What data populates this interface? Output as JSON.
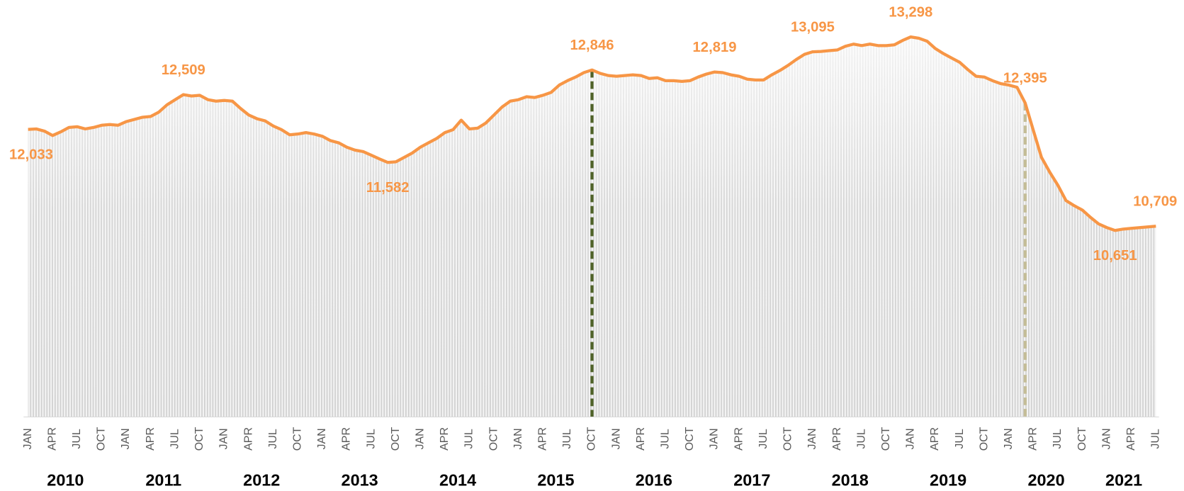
{
  "chart_data": {
    "type": "line",
    "categories": [
      "JAN",
      null,
      null,
      "APR",
      null,
      null,
      "JUL",
      null,
      null,
      "OCT",
      null,
      null,
      "JAN",
      null,
      null,
      "APR",
      null,
      null,
      "JUL",
      null,
      null,
      "OCT",
      null,
      null,
      "JAN",
      null,
      null,
      "APR",
      null,
      null,
      "JUL",
      null,
      null,
      "OCT",
      null,
      null,
      "JAN",
      null,
      null,
      "APR",
      null,
      null,
      "JUL",
      null,
      null,
      "OCT",
      null,
      null,
      "JAN",
      null,
      null,
      "APR",
      null,
      null,
      "JUL",
      null,
      null,
      "OCT",
      null,
      null,
      "JAN",
      null,
      null,
      "APR",
      null,
      null,
      "JUL",
      null,
      null,
      "OCT",
      null,
      null,
      "JAN",
      null,
      null,
      "APR",
      null,
      null,
      "JUL",
      null,
      null,
      "OCT",
      null,
      null,
      "JAN",
      null,
      null,
      "APR",
      null,
      null,
      "JUL",
      null,
      null,
      "OCT",
      null,
      null,
      "JAN",
      null,
      null,
      "APR",
      null,
      null,
      "JUL",
      null,
      null,
      "OCT",
      null,
      null,
      "JAN",
      null,
      null,
      "APR",
      null,
      null,
      "JUL",
      null,
      null,
      "OCT",
      null,
      null,
      "JAN",
      null,
      null,
      "APR",
      null,
      null,
      "JUL",
      null,
      null,
      "OCT",
      null,
      null,
      "JAN",
      null,
      null,
      "APR",
      null,
      null,
      "JUL"
    ],
    "years": [
      "2010",
      "2011",
      "2012",
      "2013",
      "2014",
      "2015",
      "2016",
      "2017",
      "2018",
      "2019",
      "2020",
      "2021"
    ],
    "color": "#f79646",
    "values": [
      12033,
      12040,
      12010,
      11950,
      12000,
      12060,
      12070,
      12040,
      12060,
      12090,
      12100,
      12090,
      12140,
      12170,
      12200,
      12210,
      12270,
      12370,
      12440,
      12509,
      12490,
      12500,
      12440,
      12420,
      12430,
      12420,
      12320,
      12230,
      12180,
      12150,
      12080,
      12030,
      11960,
      11970,
      11990,
      11970,
      11940,
      11880,
      11850,
      11790,
      11750,
      11730,
      11680,
      11630,
      11582,
      11590,
      11650,
      11710,
      11790,
      11850,
      11910,
      11990,
      12030,
      12160,
      12040,
      12050,
      12120,
      12230,
      12340,
      12420,
      12440,
      12480,
      12470,
      12500,
      12540,
      12640,
      12700,
      12750,
      12810,
      12846,
      12800,
      12770,
      12760,
      12770,
      12780,
      12770,
      12730,
      12740,
      12700,
      12700,
      12690,
      12700,
      12750,
      12790,
      12819,
      12810,
      12780,
      12760,
      12720,
      12710,
      12710,
      12780,
      12840,
      12910,
      12990,
      13060,
      13095,
      13100,
      13110,
      13120,
      13170,
      13200,
      13180,
      13200,
      13180,
      13180,
      13190,
      13250,
      13298,
      13280,
      13240,
      13140,
      13070,
      13010,
      12950,
      12850,
      12760,
      12750,
      12700,
      12660,
      12640,
      12610,
      12395,
      12020,
      11650,
      11450,
      11270,
      11060,
      10990,
      10930,
      10830,
      10740,
      10690,
      10651,
      10670,
      10680,
      10690,
      10700,
      10709
    ],
    "value_labels": [
      "12,033",
      null,
      null,
      null,
      null,
      null,
      null,
      null,
      null,
      null,
      null,
      null,
      null,
      null,
      null,
      null,
      null,
      null,
      null,
      "12,509",
      null,
      null,
      null,
      null,
      null,
      null,
      null,
      null,
      null,
      null,
      null,
      null,
      null,
      null,
      null,
      null,
      null,
      null,
      null,
      null,
      null,
      null,
      null,
      null,
      "11,582",
      null,
      null,
      null,
      null,
      null,
      null,
      null,
      null,
      null,
      null,
      null,
      null,
      null,
      null,
      null,
      null,
      null,
      null,
      null,
      null,
      null,
      null,
      null,
      null,
      "12,846",
      null,
      null,
      null,
      null,
      null,
      null,
      null,
      null,
      null,
      null,
      null,
      null,
      null,
      null,
      "12,819",
      null,
      null,
      null,
      null,
      null,
      null,
      null,
      null,
      null,
      null,
      null,
      "13,095",
      null,
      null,
      null,
      null,
      null,
      null,
      null,
      null,
      null,
      null,
      null,
      "13,298",
      null,
      null,
      null,
      null,
      null,
      null,
      null,
      null,
      null,
      null,
      null,
      null,
      null,
      "12,395",
      null,
      null,
      null,
      null,
      null,
      null,
      null,
      null,
      null,
      null,
      "10,651",
      null,
      null,
      null,
      null,
      "10,709"
    ],
    "drop_line_colors": [
      null,
      null,
      null,
      null,
      null,
      null,
      null,
      null,
      null,
      null,
      null,
      null,
      null,
      null,
      null,
      null,
      null,
      null,
      null,
      null,
      null,
      null,
      null,
      null,
      null,
      null,
      null,
      null,
      null,
      null,
      null,
      null,
      null,
      null,
      null,
      null,
      null,
      null,
      null,
      null,
      null,
      null,
      null,
      null,
      null,
      null,
      null,
      null,
      null,
      null,
      null,
      null,
      null,
      null,
      null,
      null,
      null,
      null,
      null,
      null,
      null,
      null,
      null,
      null,
      null,
      null,
      null,
      null,
      null,
      "#4f6228",
      null,
      null,
      null,
      null,
      null,
      null,
      null,
      null,
      null,
      null,
      null,
      null,
      null,
      null,
      null,
      null,
      null,
      null,
      null,
      null,
      null,
      null,
      null,
      null,
      null,
      null,
      null,
      null,
      null,
      null,
      null,
      null,
      null,
      null,
      null,
      null,
      null,
      null,
      null,
      null,
      null,
      null,
      null,
      null,
      null,
      null,
      null,
      null,
      null,
      null,
      null,
      null,
      "#c4bd97",
      null,
      null,
      null,
      null,
      null,
      null,
      null,
      null,
      null,
      null,
      null,
      null,
      null,
      null,
      null,
      null
    ],
    "ylim": [
      8100,
      13700
    ]
  }
}
